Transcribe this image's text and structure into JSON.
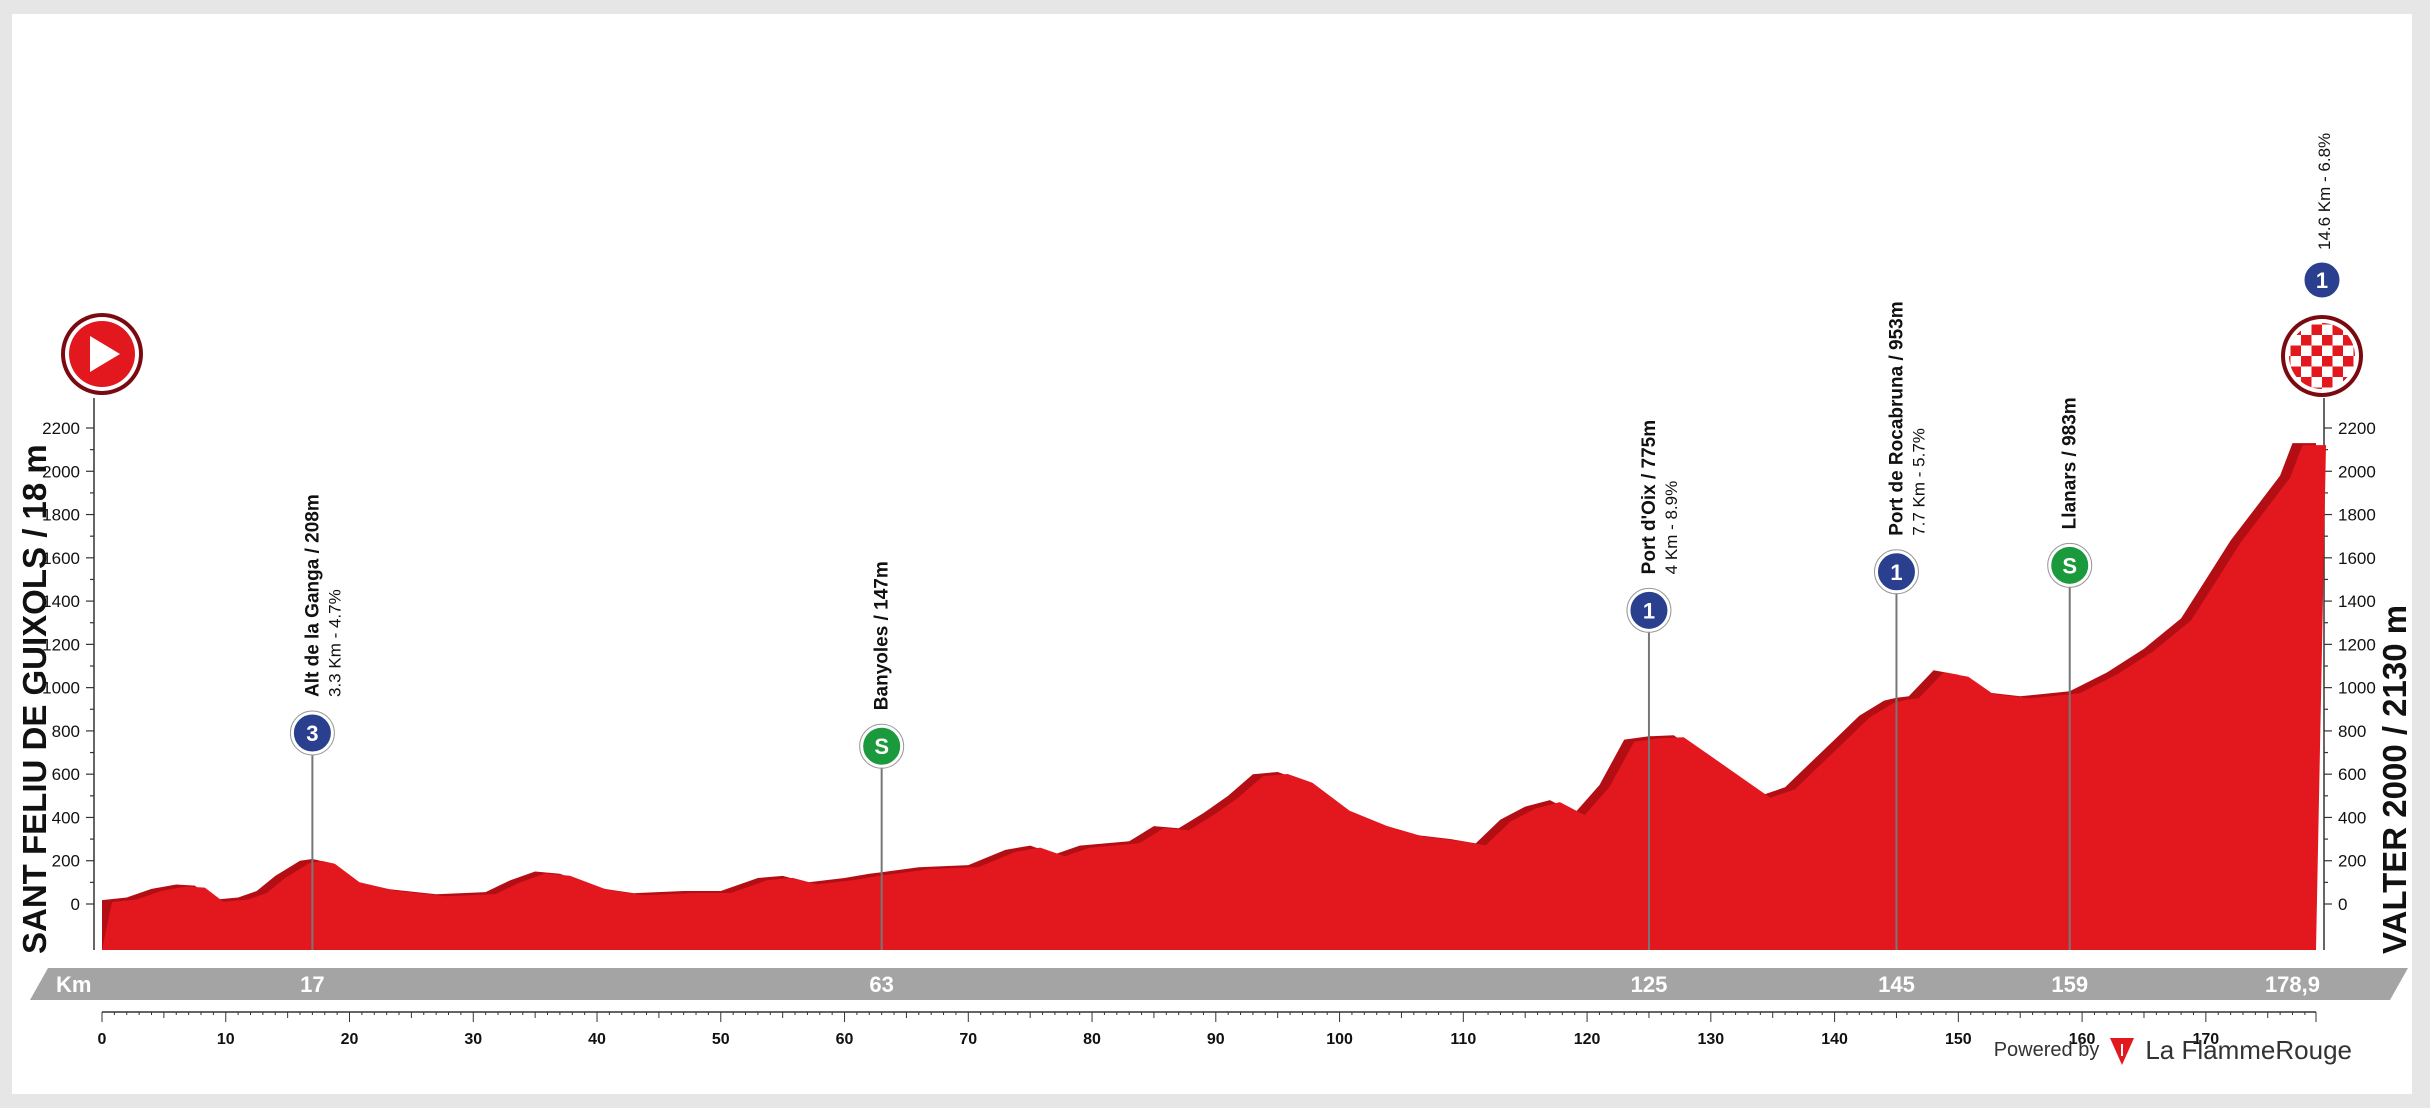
{
  "chart_data": {
    "type": "area",
    "x_unit": "Km",
    "x_range": [
      0,
      178.9
    ],
    "ylim": [
      0,
      2200
    ],
    "y_ticks": [
      0,
      200,
      400,
      600,
      800,
      1000,
      1200,
      1400,
      1600,
      1800,
      2000,
      2200
    ],
    "x_ticks": [
      0,
      10,
      20,
      30,
      40,
      50,
      60,
      70,
      80,
      90,
      100,
      110,
      120,
      130,
      140,
      150,
      160,
      170
    ],
    "start_label": "SANT FELIU DE GUIXOLS / 18 m",
    "finish_label": "VALTER 2000 / 2130 m",
    "finish_climb": "14.6 Km - 6.8%",
    "finish_climb_badge": "1",
    "km_bar_label": "Km",
    "km_markers": [
      "17",
      "63",
      "125",
      "145",
      "159",
      "178,9"
    ],
    "profile": [
      [
        0,
        18
      ],
      [
        2,
        30
      ],
      [
        4,
        70
      ],
      [
        6,
        90
      ],
      [
        7.5,
        85
      ],
      [
        9,
        20
      ],
      [
        11,
        30
      ],
      [
        12.5,
        60
      ],
      [
        14,
        130
      ],
      [
        16,
        200
      ],
      [
        17,
        208
      ],
      [
        18,
        195
      ],
      [
        20,
        110
      ],
      [
        23,
        70
      ],
      [
        27,
        45
      ],
      [
        31,
        55
      ],
      [
        33,
        110
      ],
      [
        35,
        150
      ],
      [
        37,
        140
      ],
      [
        40,
        75
      ],
      [
        43,
        50
      ],
      [
        47,
        60
      ],
      [
        50,
        60
      ],
      [
        53,
        120
      ],
      [
        55,
        130
      ],
      [
        57,
        100
      ],
      [
        60,
        120
      ],
      [
        62,
        140
      ],
      [
        63,
        147
      ],
      [
        66,
        170
      ],
      [
        70,
        180
      ],
      [
        73,
        250
      ],
      [
        75,
        270
      ],
      [
        77,
        230
      ],
      [
        79,
        270
      ],
      [
        83,
        290
      ],
      [
        85,
        360
      ],
      [
        87,
        350
      ],
      [
        89,
        420
      ],
      [
        91,
        500
      ],
      [
        93,
        600
      ],
      [
        95,
        610
      ],
      [
        97,
        570
      ],
      [
        100,
        440
      ],
      [
        103,
        370
      ],
      [
        106,
        320
      ],
      [
        109,
        300
      ],
      [
        111,
        280
      ],
      [
        113,
        390
      ],
      [
        115,
        450
      ],
      [
        117,
        480
      ],
      [
        119,
        420
      ],
      [
        121,
        550
      ],
      [
        123,
        760
      ],
      [
        125,
        775
      ],
      [
        127,
        780
      ],
      [
        129,
        700
      ],
      [
        132,
        580
      ],
      [
        134,
        500
      ],
      [
        136,
        540
      ],
      [
        138,
        650
      ],
      [
        140,
        760
      ],
      [
        142,
        870
      ],
      [
        144,
        940
      ],
      [
        145,
        953
      ],
      [
        146,
        960
      ],
      [
        148,
        1080
      ],
      [
        150,
        1060
      ],
      [
        152,
        980
      ],
      [
        155,
        960
      ],
      [
        159,
        983
      ],
      [
        162,
        1070
      ],
      [
        165,
        1180
      ],
      [
        168,
        1320
      ],
      [
        170,
        1500
      ],
      [
        172,
        1680
      ],
      [
        174,
        1830
      ],
      [
        176,
        1980
      ],
      [
        177,
        2130
      ],
      [
        178.9,
        2130
      ]
    ],
    "markers": [
      {
        "km": 17,
        "elev": 208,
        "type": "climb",
        "badge": "3",
        "title": "Alt de la Ganga / 208m",
        "subtitle": "3.3 Km - 4.7%"
      },
      {
        "km": 63,
        "elev": 147,
        "type": "sprint",
        "badge": "S",
        "title": "Banyoles / 147m",
        "subtitle": ""
      },
      {
        "km": 125,
        "elev": 775,
        "type": "climb",
        "badge": "1",
        "title": "Port d'Oix / 775m",
        "subtitle": "4 Km - 8.9%"
      },
      {
        "km": 145,
        "elev": 953,
        "type": "climb",
        "badge": "1",
        "title": "Port de Rocabruna / 953m",
        "subtitle": "7.7 Km - 5.7%"
      },
      {
        "km": 159,
        "elev": 983,
        "type": "sprint",
        "badge": "S",
        "title": "Llanars / 983m",
        "subtitle": ""
      }
    ],
    "colors": {
      "profile": "#e2181e",
      "profile_dark": "#b30e14",
      "climb_badge": "#2b3f8f",
      "sprint_badge": "#1a9a3c",
      "km_bar": "#a4a4a4"
    }
  },
  "footer": {
    "powered_by": "Powered by",
    "brand": "La FlammeRouge"
  }
}
